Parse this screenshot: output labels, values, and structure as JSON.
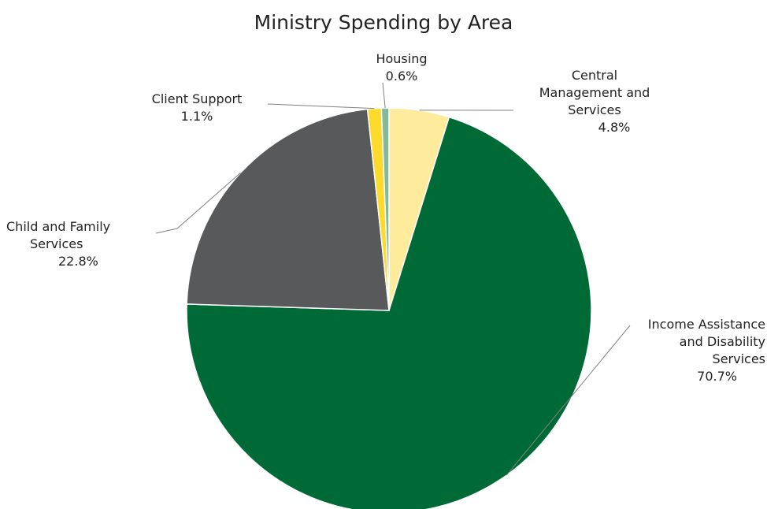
{
  "chart_data": {
    "type": "pie",
    "title": "Ministry Spending by Area",
    "start_angle_deg": 0,
    "direction": "clockwise",
    "slices": [
      {
        "name": "Central Management and Services",
        "label_lines": [
          "Central",
          "Management and",
          "Services"
        ],
        "value": 4.8,
        "display": "4.8%",
        "color": "#FFEB9C"
      },
      {
        "name": "Income Assistance and Disability Services",
        "label_lines": [
          "Income Assistance",
          "and Disability",
          "Services"
        ],
        "value": 70.7,
        "display": "70.7%",
        "color": "#006A36"
      },
      {
        "name": "Child and Family Services",
        "label_lines": [
          "Child and Family",
          "Services"
        ],
        "value": 22.8,
        "display": "22.8%",
        "color": "#58595B"
      },
      {
        "name": "Client Support",
        "label_lines": [
          "Client Support"
        ],
        "value": 1.1,
        "display": "1.1%",
        "color": "#FDDA2C"
      },
      {
        "name": "Housing",
        "label_lines": [
          "Housing"
        ],
        "value": 0.6,
        "display": "0.6%",
        "color": "#86B89A"
      }
    ]
  }
}
